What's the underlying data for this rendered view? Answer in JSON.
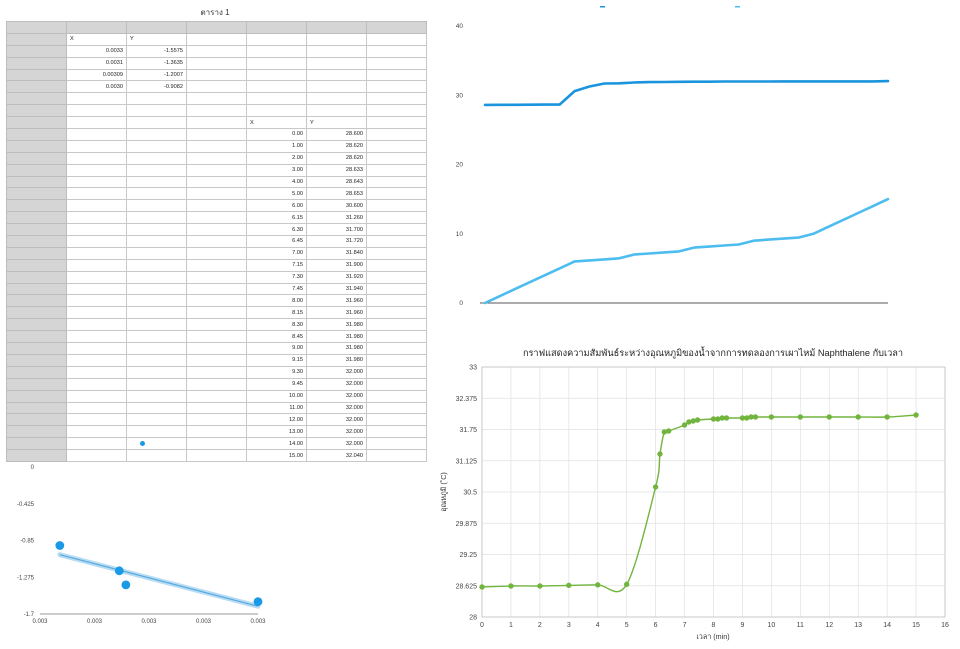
{
  "table": {
    "title": "ตาราง 1",
    "small_header": [
      "X",
      "Y"
    ],
    "small_rows": [
      [
        "0.0033",
        "-1.5575"
      ],
      [
        "0.0031",
        "-1.3635"
      ],
      [
        "0.00309",
        "-1.2007"
      ],
      [
        "0.0030",
        "-0.9082"
      ]
    ],
    "main_header": [
      "X",
      "Y"
    ],
    "main_rows": [
      [
        "0.00",
        "28.600"
      ],
      [
        "1.00",
        "28.620"
      ],
      [
        "2.00",
        "28.620"
      ],
      [
        "3.00",
        "28.633"
      ],
      [
        "4.00",
        "28.643"
      ],
      [
        "5.00",
        "28.653"
      ],
      [
        "6.00",
        "30.600"
      ],
      [
        "6.15",
        "31.260"
      ],
      [
        "6.30",
        "31.700"
      ],
      [
        "6.45",
        "31.720"
      ],
      [
        "7.00",
        "31.840"
      ],
      [
        "7.15",
        "31.900"
      ],
      [
        "7.30",
        "31.920"
      ],
      [
        "7.45",
        "31.940"
      ],
      [
        "8.00",
        "31.960"
      ],
      [
        "8.15",
        "31.960"
      ],
      [
        "8.30",
        "31.980"
      ],
      [
        "8.45",
        "31.980"
      ],
      [
        "9.00",
        "31.980"
      ],
      [
        "9.15",
        "31.980"
      ],
      [
        "9.30",
        "32.000"
      ],
      [
        "9.45",
        "32.000"
      ],
      [
        "10.00",
        "32.000"
      ],
      [
        "11.00",
        "32.000"
      ],
      [
        "12.00",
        "32.000"
      ],
      [
        "13.00",
        "32.000"
      ],
      [
        "14.00",
        "32.000"
      ],
      [
        "15.00",
        "32.040"
      ]
    ]
  },
  "chart_data": [
    {
      "type": "scatter",
      "name": "small-scatter",
      "title": "",
      "points": [
        {
          "x": 0.003,
          "y": -0.9082
        },
        {
          "x": 0.00309,
          "y": -1.2007
        },
        {
          "x": 0.0031,
          "y": -1.3635
        },
        {
          "x": 0.0033,
          "y": -1.5575
        }
      ],
      "trendline": true,
      "color": "#1a9ae6",
      "xlim": [
        0.00297,
        0.0033
      ],
      "xticks": [
        "0.003",
        "0.003",
        "0.003",
        "0.003",
        "0.003"
      ],
      "ylim": [
        -1.7,
        0
      ],
      "yticks": [
        "0",
        "-0.425",
        "-0.85",
        "-1.275",
        "-1.7"
      ]
    },
    {
      "type": "line",
      "name": "top-right-line",
      "x": [
        0,
        1,
        2,
        3,
        4,
        5,
        6,
        7,
        8,
        9,
        10,
        11,
        12,
        13,
        14,
        15,
        16,
        17,
        18,
        19,
        20,
        21,
        22,
        23,
        24,
        25,
        26,
        27
      ],
      "series": [
        {
          "name": "Y",
          "color": "#1b94de",
          "values": [
            28.6,
            28.62,
            28.62,
            28.633,
            28.643,
            28.653,
            30.6,
            31.26,
            31.7,
            31.72,
            31.84,
            31.9,
            31.92,
            31.94,
            31.96,
            31.96,
            31.98,
            31.98,
            31.98,
            31.98,
            32.0,
            32.0,
            32.0,
            32.0,
            32.0,
            32.0,
            32.0,
            32.04
          ]
        },
        {
          "name": "X",
          "color": "#4dbcef",
          "values": [
            0,
            1,
            2,
            3,
            4,
            5,
            6,
            6.15,
            6.3,
            6.45,
            7,
            7.15,
            7.3,
            7.45,
            8,
            8.15,
            8.3,
            8.45,
            9,
            9.15,
            9.3,
            9.45,
            10,
            11,
            12,
            13,
            14,
            15
          ]
        }
      ],
      "ylim": [
        0,
        40
      ],
      "yticks": [
        "0",
        "10",
        "20",
        "30",
        "40"
      ]
    },
    {
      "type": "line",
      "name": "naphthalene-cooling",
      "title": "กราฟแสดงความสัมพันธ์ระหว่างอุณหภูมิของน้ำจากการทดลองการเผาไหม้ Naphthalene กับเวลา",
      "xlabel": "เวลา (min)",
      "ylabel": "อุณหภูมิ (˚C)",
      "color": "#72b53e",
      "x": [
        0,
        1,
        2,
        3,
        4,
        5,
        6,
        6.15,
        6.3,
        6.45,
        7,
        7.15,
        7.3,
        7.45,
        8,
        8.15,
        8.3,
        8.45,
        9,
        9.15,
        9.3,
        9.45,
        10,
        11,
        12,
        13,
        14,
        15
      ],
      "y": [
        28.6,
        28.62,
        28.62,
        28.633,
        28.643,
        28.653,
        30.6,
        31.26,
        31.7,
        31.72,
        31.84,
        31.9,
        31.92,
        31.94,
        31.96,
        31.96,
        31.98,
        31.98,
        31.98,
        31.98,
        32.0,
        32.0,
        32.0,
        32.0,
        32.0,
        32.0,
        32.0,
        32.04
      ],
      "xlim": [
        0,
        16
      ],
      "xticks": [
        "0",
        "1",
        "2",
        "3",
        "4",
        "5",
        "6",
        "7",
        "8",
        "9",
        "10",
        "11",
        "12",
        "13",
        "14",
        "15",
        "16"
      ],
      "ylim": [
        28,
        33
      ],
      "yticks": [
        "28",
        "28.625",
        "29.25",
        "29.875",
        "30.5",
        "31.125",
        "31.75",
        "32.375",
        "33"
      ],
      "grid": true
    }
  ]
}
